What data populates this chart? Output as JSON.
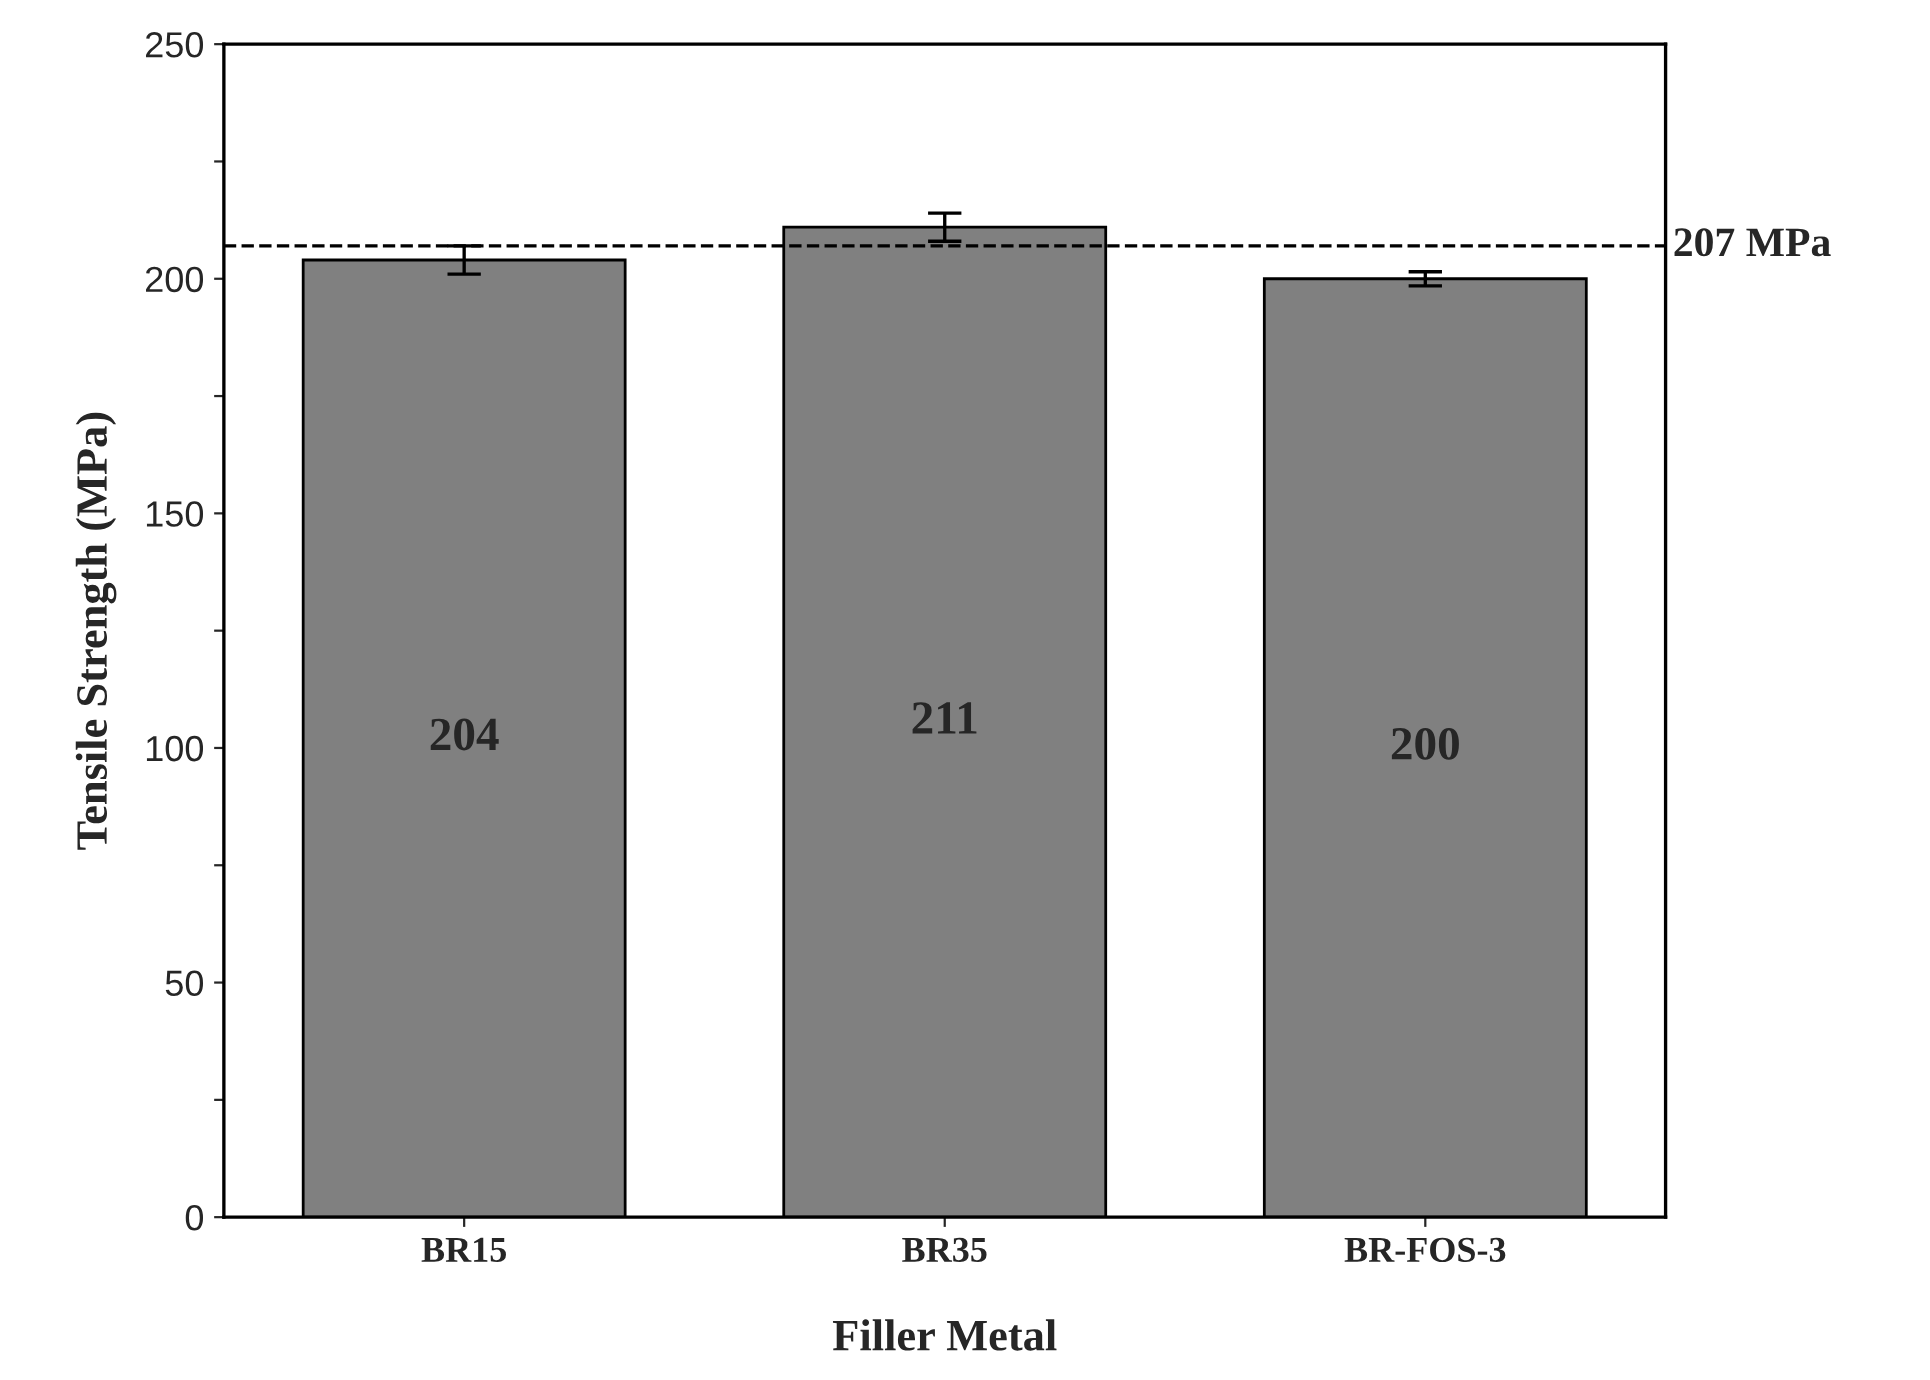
{
  "chart_data": {
    "type": "bar",
    "xlabel": "Filler Metal",
    "ylabel": "Tensile Strength (MPa)",
    "categories": [
      "BR15",
      "BR35",
      "BR-FOS-3"
    ],
    "values": [
      204,
      211,
      200
    ],
    "errors": [
      3,
      3,
      1.5
    ],
    "color": "#808080",
    "data_labels": true,
    "ylim": [
      0,
      250
    ],
    "yticks": [
      0,
      {
        "value": 25,
        "label": null
      },
      50,
      {
        "value": 75,
        "label": null
      },
      100,
      {
        "value": 125,
        "label": null
      },
      150,
      {
        "value": 175,
        "label": null
      },
      200,
      {
        "value": 225,
        "label": null
      },
      250
    ],
    "ref_lines": [
      {
        "axis": "y",
        "value": 207,
        "label": "207 MPa",
        "color": "#000000",
        "line_style": "dashed"
      }
    ],
    "grid": false,
    "legend": false
  }
}
